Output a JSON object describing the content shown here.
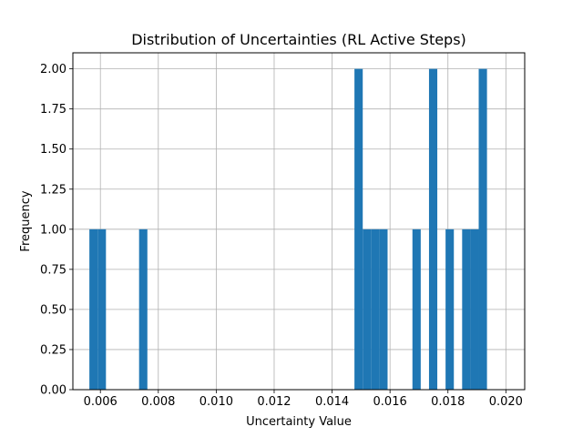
{
  "chart_data": {
    "type": "bar",
    "title": "Distribution of Uncertainties (RL Active Steps)",
    "xlabel": "Uncertainty Value",
    "ylabel": "Frequency",
    "xlim": [
      0.00505,
      0.02065
    ],
    "ylim": [
      0,
      2.1
    ],
    "grid": true,
    "bar_color": "#1f77b4",
    "bin_width": 0.000286,
    "bin_start": 0.00562,
    "counts": [
      1,
      1,
      0,
      0,
      0,
      0,
      1,
      0,
      0,
      0,
      0,
      0,
      0,
      0,
      0,
      0,
      0,
      0,
      0,
      0,
      0,
      0,
      0,
      0,
      0,
      0,
      0,
      0,
      0,
      0,
      0,
      0,
      2,
      1,
      1,
      1,
      0,
      0,
      0,
      1,
      0,
      2,
      0,
      1,
      0,
      1,
      1,
      2
    ],
    "xticks": [
      "0.006",
      "0.008",
      "0.010",
      "0.012",
      "0.014",
      "0.016",
      "0.018",
      "0.020"
    ],
    "yticks": [
      "0.00",
      "0.25",
      "0.50",
      "0.75",
      "1.00",
      "1.25",
      "1.50",
      "1.75",
      "2.00"
    ]
  }
}
